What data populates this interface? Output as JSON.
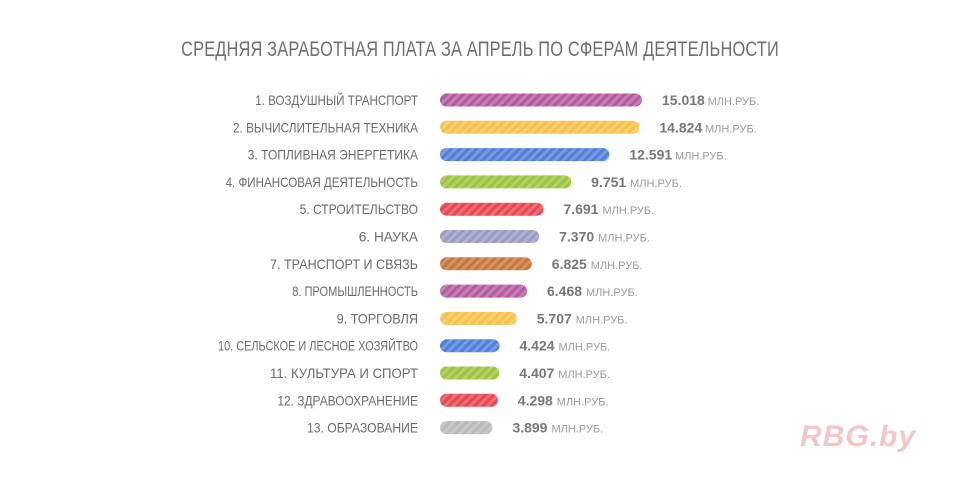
{
  "chart_data": {
    "type": "bar",
    "orientation": "horizontal",
    "title": "СРЕДНЯЯ ЗАРАБОТНАЯ ПЛАТА ЗА АПРЕЛЬ ПО СФЕРАМ ДЕЯТЕЛЬНОСТИ",
    "unit": "МЛН.РУБ.",
    "categories": [
      "1. ВОЗДУШНЫЙ ТРАНСПОРТ",
      "2. ВЫЧИСЛИТЕЛЬНАЯ ТЕХНИКА",
      "3. ТОПЛИВНАЯ ЭНЕРГЕТИКА",
      "4. ФИНАНСОВАЯ ДЕЯТЕЛЬНОСТЬ",
      "5. СТРОИТЕЛЬСТВО",
      "6. НАУКА",
      "7. ТРАНСПОРТ И СВЯЗЬ",
      "8. ПРОМЫШЛЕННОСТЬ",
      "9. ТОРГОВЛЯ",
      "10. СЕЛЬСКОЕ И ЛЕСНОЕ ХОЗЯЙТВО",
      "11. КУЛЬТУРА И СПОРТ",
      "12. ЗДРАВООХРАНЕНИЕ",
      "13. ОБРАЗОВАНИЕ"
    ],
    "values": [
      15.018,
      14.824,
      12.591,
      9.751,
      7.691,
      7.37,
      6.825,
      6.468,
      5.707,
      4.424,
      4.407,
      4.298,
      3.899
    ],
    "value_labels": [
      "15.018",
      "14.824",
      "12.591",
      "9.751",
      "7.691",
      "7.370",
      "6.825",
      "6.468",
      "5.707",
      "4.424",
      "4.407",
      "4.298",
      "3.899"
    ],
    "colors": [
      "#b45a9c",
      "#f7c24a",
      "#4f7fd9",
      "#9cc43f",
      "#e8474f",
      "#9b9cc2",
      "#c8763a",
      "#b45a9c",
      "#f7c24a",
      "#4f7fd9",
      "#9cc43f",
      "#e8474f",
      "#b9b9b9"
    ],
    "xlim": [
      0,
      15.018
    ],
    "grid": false,
    "legend": "none"
  },
  "watermark": "RBG.by"
}
